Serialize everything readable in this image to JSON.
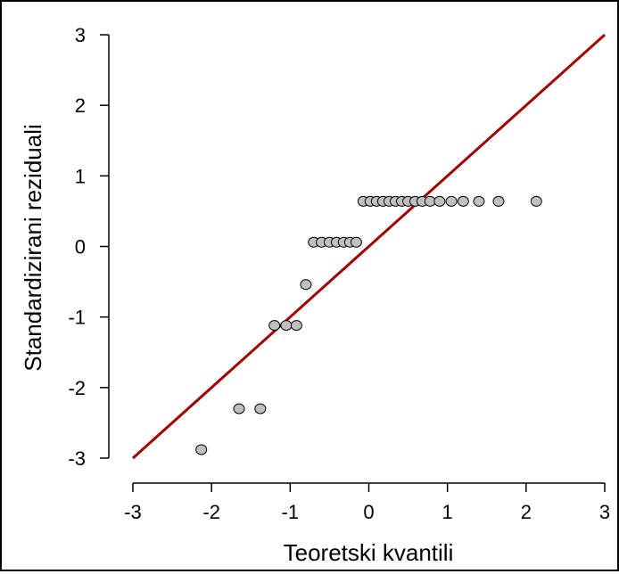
{
  "chart_data": {
    "type": "scatter",
    "title": "",
    "xlabel": "Teoretski kvantili",
    "ylabel": "Standardizirani reziduali",
    "xlim": [
      -3,
      3
    ],
    "ylim": [
      -3,
      3
    ],
    "x_ticks": [
      -3,
      -2,
      -1,
      0,
      1,
      2,
      3
    ],
    "y_ticks": [
      -3,
      -2,
      -1,
      0,
      1,
      2,
      3
    ],
    "x_tick_labels": [
      "-3",
      "-2",
      "-1",
      "0",
      "1",
      "2",
      "3"
    ],
    "y_tick_labels": [
      "-3",
      "-2",
      "-1",
      "0",
      "1",
      "2",
      "3"
    ],
    "grid": false,
    "legend": "none",
    "reference_line": {
      "x": [
        -3,
        3
      ],
      "y": [
        -3,
        3
      ],
      "color": "#a00000"
    },
    "point_fill": "#c0c0c0",
    "point_stroke": "#000000",
    "series": [
      {
        "x": [
          -2.13,
          -1.65,
          -1.38,
          -1.2,
          -1.05,
          -0.92,
          -0.8,
          -0.7,
          -0.6,
          -0.5,
          -0.41,
          -0.32,
          -0.24,
          -0.16,
          -0.07,
          0.02,
          0.1,
          0.18,
          0.26,
          0.34,
          0.42,
          0.5,
          0.59,
          0.68,
          0.78,
          0.9,
          1.05,
          1.2,
          1.4,
          1.65,
          2.13
        ],
        "y": [
          -2.88,
          -2.3,
          -2.3,
          -1.12,
          -1.12,
          -1.12,
          -0.54,
          0.06,
          0.06,
          0.06,
          0.06,
          0.06,
          0.06,
          0.06,
          0.64,
          0.64,
          0.64,
          0.64,
          0.64,
          0.64,
          0.64,
          0.64,
          0.64,
          0.64,
          0.64,
          0.64,
          0.64,
          0.64,
          0.64,
          0.64,
          0.64
        ]
      }
    ]
  }
}
